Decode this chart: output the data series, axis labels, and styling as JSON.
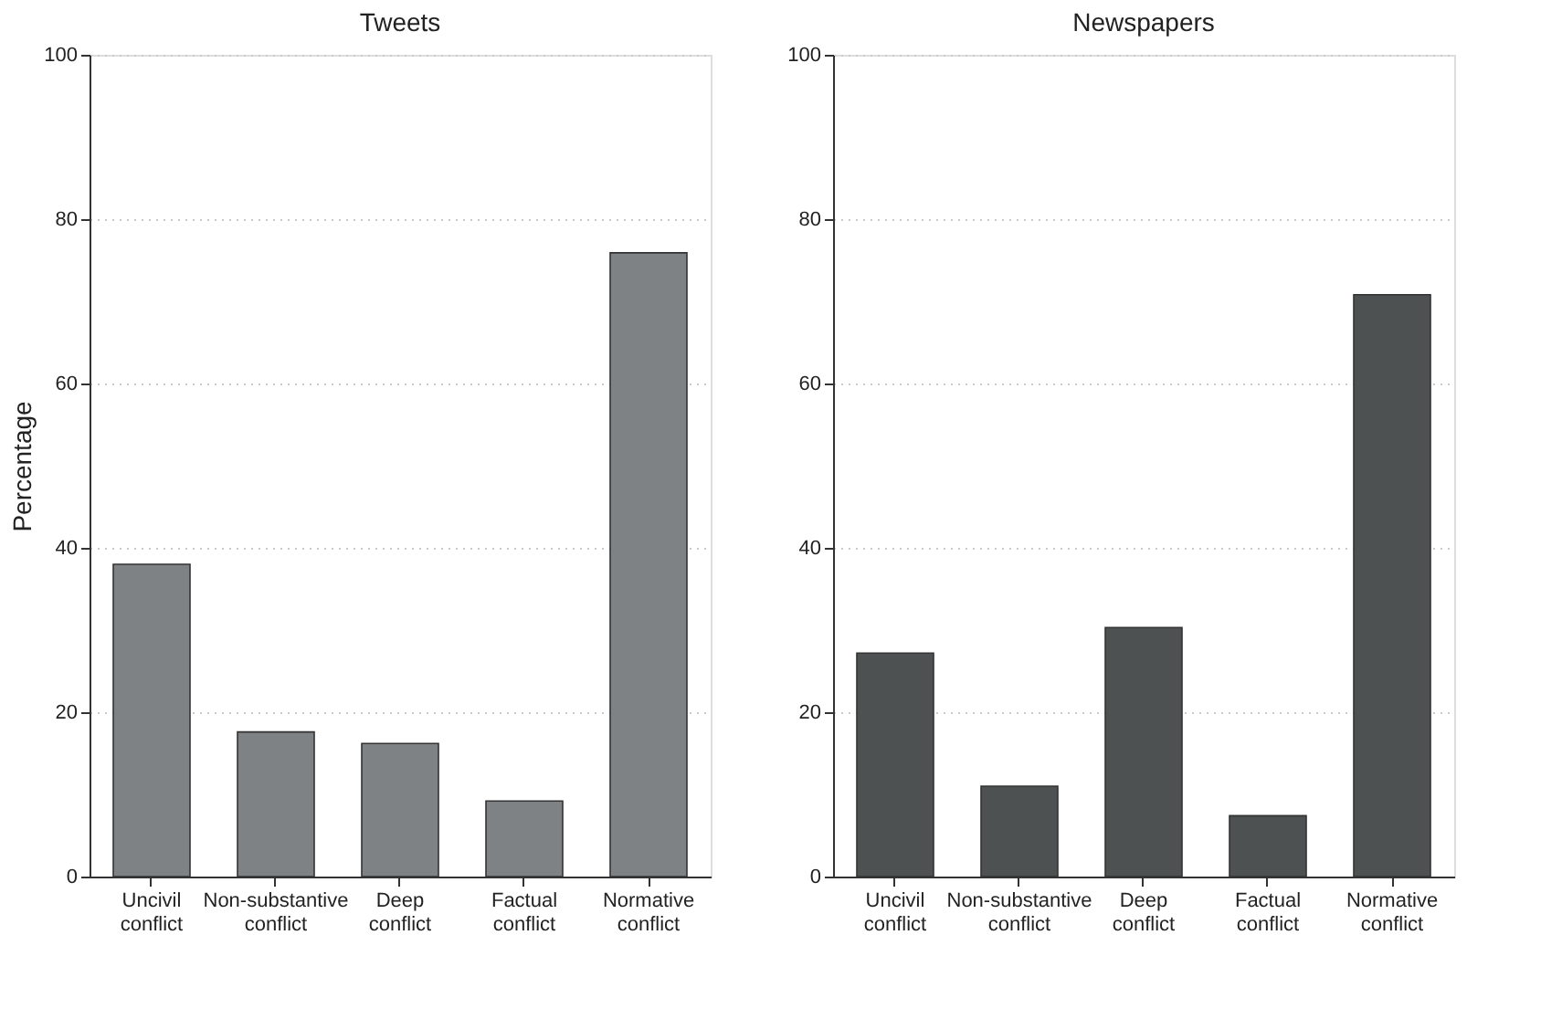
{
  "chart_data": [
    {
      "type": "bar",
      "title": "Tweets",
      "ylabel": "Percentage",
      "categories": [
        "Uncivil conflict",
        "Non-substantive conflict",
        "Deep conflict",
        "Factual conflict",
        "Normative conflict"
      ],
      "values": [
        38.0,
        17.6,
        16.2,
        9.2,
        75.9
      ],
      "color": "#7f8285",
      "ylim": [
        0,
        100
      ],
      "yticks": [
        0,
        20,
        40,
        60,
        80,
        100
      ],
      "grid": "y"
    },
    {
      "type": "bar",
      "title": "Newspapers",
      "categories": [
        "Uncivil conflict",
        "Non-substantive conflict",
        "Deep conflict",
        "Factual conflict",
        "Normative conflict"
      ],
      "values": [
        27.2,
        11.0,
        30.3,
        7.4,
        70.8
      ],
      "color": "#4d5152",
      "ylim": [
        0,
        100
      ],
      "yticks": [
        0,
        20,
        40,
        60,
        80,
        100
      ],
      "grid": "y"
    }
  ]
}
